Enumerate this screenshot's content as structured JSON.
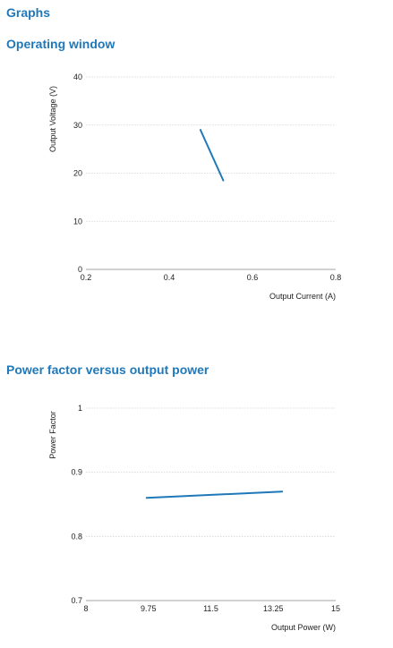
{
  "page": {
    "section_title": "Graphs"
  },
  "chart_data": [
    {
      "type": "line",
      "title": "Operating window",
      "xlabel": "Output Current (A)",
      "ylabel": "Output Voltage (V)",
      "xlim": [
        0.2,
        0.8
      ],
      "ylim": [
        0,
        40
      ],
      "xticks": [
        0.2,
        0.4,
        0.6,
        0.8
      ],
      "xtick_labels": [
        "0.2",
        "0.4",
        "0.6",
        "0.8"
      ],
      "yticks": [
        0,
        10,
        20,
        30,
        40
      ],
      "ytick_labels": [
        "0",
        "10",
        "20",
        "30",
        "40"
      ],
      "grid": true,
      "series": [
        {
          "x": [
            0.475,
            0.53
          ],
          "y": [
            29,
            18.5
          ]
        }
      ]
    },
    {
      "type": "line",
      "title": "Power factor versus output power",
      "xlabel": "Output Power (W)",
      "ylabel": "Power Factor",
      "xlim": [
        8,
        15
      ],
      "ylim": [
        0.7,
        1
      ],
      "xticks": [
        8,
        9.75,
        11.5,
        13.25,
        15
      ],
      "xtick_labels": [
        "8",
        "9.75",
        "11.5",
        "13.25",
        "15"
      ],
      "yticks": [
        0.7,
        0.8,
        0.9,
        1
      ],
      "ytick_labels": [
        "0.7",
        "0.8",
        "0.9",
        "1"
      ],
      "grid": true,
      "series": [
        {
          "x": [
            9.7,
            13.5
          ],
          "y": [
            0.86,
            0.87
          ]
        }
      ]
    }
  ],
  "colors": {
    "heading": "#1f78b9",
    "series": "#1f78b9",
    "grid": "#d2d2d2"
  }
}
